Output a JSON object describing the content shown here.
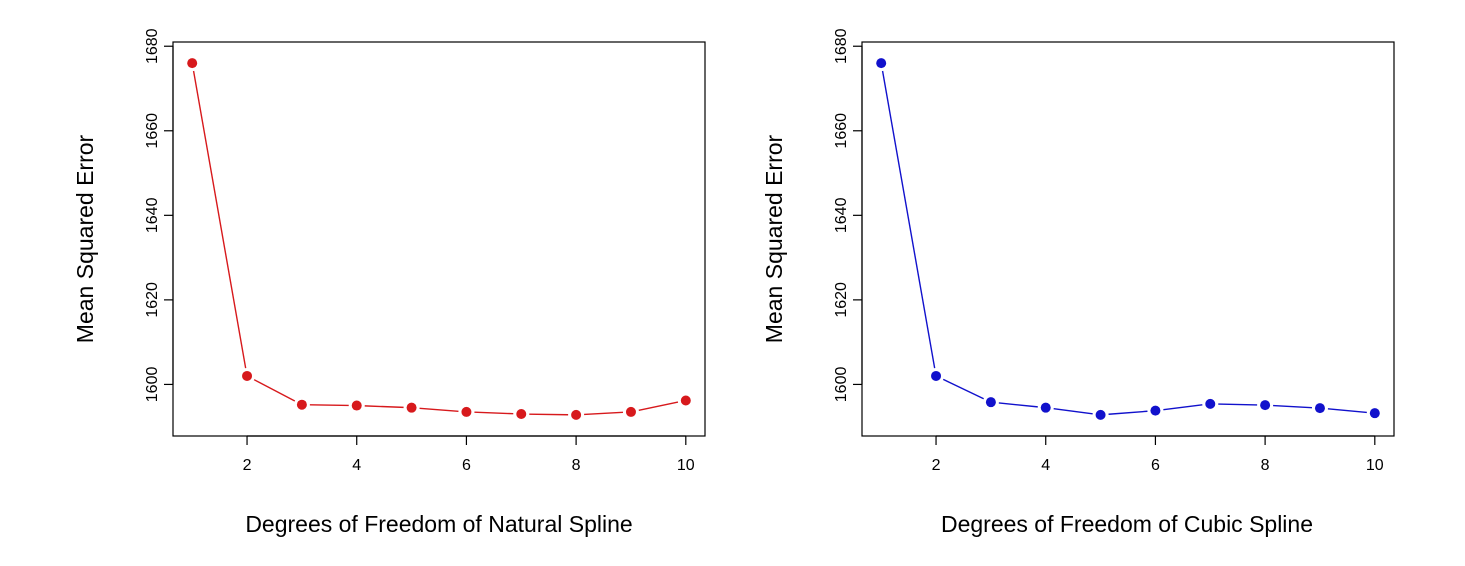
{
  "chart_data": [
    {
      "type": "line",
      "name": "natural-spline",
      "xlabel": "Degrees of Freedom of Natural Spline",
      "ylabel": "Mean Squared Error",
      "color": "#d7191c",
      "x": [
        1,
        2,
        3,
        4,
        5,
        6,
        7,
        8,
        9,
        10
      ],
      "y": [
        1676,
        1602,
        1595.2,
        1595.0,
        1594.5,
        1593.5,
        1593.0,
        1592.8,
        1593.5,
        1596.2
      ],
      "xlim": [
        0.65,
        10.35
      ],
      "ylim": [
        1587.8,
        1681.0
      ],
      "xticks": [
        2,
        4,
        6,
        8,
        10
      ],
      "xtick_labels": [
        "2",
        "4",
        "6",
        "8",
        "10"
      ],
      "yticks": [
        1600,
        1620,
        1640,
        1660,
        1680
      ],
      "ytick_labels": [
        "1600",
        "1620",
        "1640",
        "1660",
        "1680"
      ],
      "grid": false,
      "markers": "filled-circle"
    },
    {
      "type": "line",
      "name": "cubic-spline",
      "xlabel": "Degrees of Freedom of Cubic Spline",
      "ylabel": "Mean Squared Error",
      "color": "#1111cc",
      "x": [
        1,
        2,
        3,
        4,
        5,
        6,
        7,
        8,
        9,
        10
      ],
      "y": [
        1676,
        1602,
        1595.8,
        1594.5,
        1592.8,
        1593.8,
        1595.4,
        1595.1,
        1594.4,
        1593.2
      ],
      "xlim": [
        0.65,
        10.35
      ],
      "ylim": [
        1587.8,
        1681.0
      ],
      "xticks": [
        2,
        4,
        6,
        8,
        10
      ],
      "xtick_labels": [
        "2",
        "4",
        "6",
        "8",
        "10"
      ],
      "yticks": [
        1600,
        1620,
        1640,
        1660,
        1680
      ],
      "ytick_labels": [
        "1600",
        "1620",
        "1640",
        "1660",
        "1680"
      ],
      "grid": false,
      "markers": "filled-circle"
    }
  ]
}
